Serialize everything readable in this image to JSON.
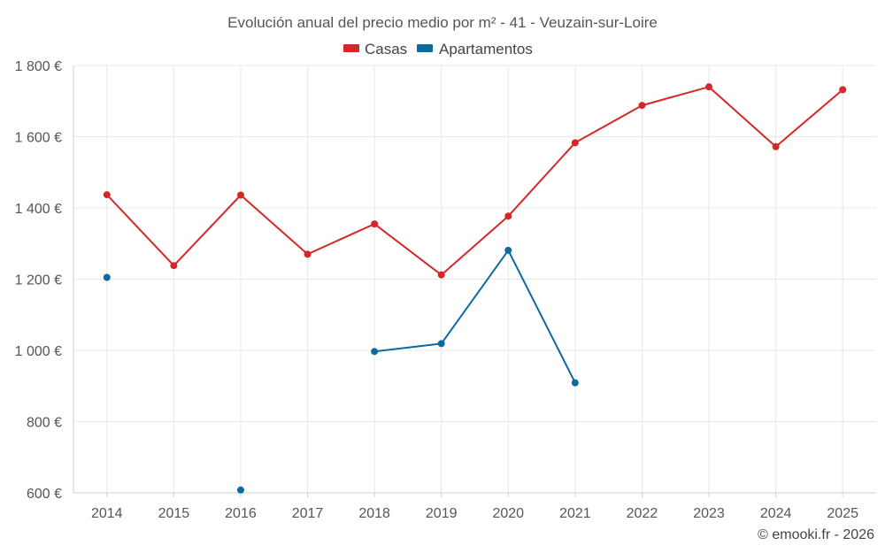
{
  "chart_data": {
    "type": "line",
    "title": "Evolución anual del precio medio por m² - 41 - Veuzain-sur-Loire",
    "categories": [
      "2014",
      "2015",
      "2016",
      "2017",
      "2018",
      "2019",
      "2020",
      "2021",
      "2022",
      "2023",
      "2024",
      "2025"
    ],
    "series": [
      {
        "name": "Casas",
        "color": "#d62728",
        "values": [
          1437,
          1238,
          1436,
          1270,
          1355,
          1212,
          1377,
          1583,
          1688,
          1740,
          1572,
          1732
        ]
      },
      {
        "name": "Apartamentos",
        "color": "#0a6aa1",
        "values": [
          1205,
          null,
          608,
          null,
          997,
          1019,
          1281,
          909,
          null,
          null,
          null,
          null
        ]
      }
    ],
    "ylim": [
      600,
      1800
    ],
    "yticks": [
      600,
      800,
      1000,
      1200,
      1400,
      1600,
      1800
    ],
    "ytick_labels": [
      "600 €",
      "800 €",
      "1 000 €",
      "1 200 €",
      "1 400 €",
      "1 600 €",
      "1 800 €"
    ],
    "xlabel": "",
    "ylabel": "",
    "grid": true,
    "legend_position": "top-center"
  },
  "credit": "© emooki.fr - 2026"
}
